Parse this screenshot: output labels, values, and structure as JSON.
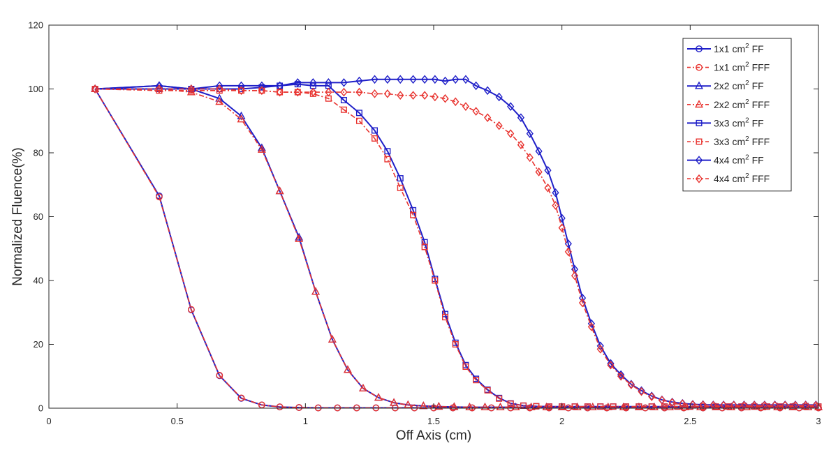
{
  "chart_data": {
    "type": "line",
    "title": "",
    "xlabel": "Off Axis (cm)",
    "ylabel": "Normalized Fluence(%)",
    "xlim": [
      0,
      3
    ],
    "ylim": [
      0,
      120
    ],
    "xticks": [
      0,
      0.5,
      1,
      1.5,
      2,
      2.5,
      3
    ],
    "xtick_labels": [
      "0",
      "0.5",
      "1",
      "1.5",
      "2",
      "2.5",
      "3"
    ],
    "yticks": [
      0,
      20,
      40,
      60,
      80,
      100,
      120
    ],
    "ytick_labels": [
      "0",
      "20",
      "40",
      "60",
      "80",
      "100",
      "120"
    ],
    "grid": false,
    "legend_position": "top-right",
    "colors": {
      "FF": "#1f1fc8",
      "FFF": "#e8332f",
      "axis": "#262626"
    },
    "series": [
      {
        "name": "1x1 cm² FF",
        "label_base": "1x1 cm",
        "label_tail": " FF",
        "color": "#1f1fc8",
        "dash": "solid",
        "marker": "circle",
        "x": [
          0.18,
          0.43,
          0.555,
          0.665,
          0.75,
          0.83,
          0.9,
          0.975,
          1.05,
          1.125,
          1.2,
          1.275,
          1.35,
          1.425,
          1.5,
          1.575,
          1.65,
          1.725,
          1.8,
          1.875,
          1.95,
          2.025,
          2.1,
          2.175,
          2.25,
          2.325,
          2.4,
          2.475,
          2.55,
          2.625,
          2.7,
          2.775,
          2.85,
          2.925,
          3.0
        ],
        "y": [
          100,
          66.5,
          30.8,
          10.2,
          3.1,
          1.0,
          0.4,
          0.2,
          0.1,
          0.1,
          0.1,
          0.1,
          0.1,
          0.1,
          0.1,
          0.1,
          0.1,
          0.1,
          0.1,
          0.1,
          0.1,
          0.1,
          0.1,
          0.1,
          0.1,
          0.1,
          0.1,
          0.1,
          0.1,
          0.1,
          0.1,
          0.1,
          0.1,
          0.1,
          0.1
        ]
      },
      {
        "name": "1x1 cm² FFF",
        "label_base": "1x1 cm",
        "label_tail": " FFF",
        "color": "#e8332f",
        "dash": "dashdot",
        "marker": "circle",
        "x": [
          0.18,
          0.43,
          0.555,
          0.665,
          0.75,
          0.83,
          0.9,
          0.975,
          1.05,
          1.125,
          1.2,
          1.275,
          1.35,
          1.425,
          1.5,
          1.575,
          1.65,
          1.725,
          1.8,
          1.875,
          1.95,
          2.025,
          2.1,
          2.175,
          2.25,
          2.325,
          2.4,
          2.475,
          2.55,
          2.625,
          2.7,
          2.775,
          2.85,
          2.925,
          3.0
        ],
        "y": [
          100,
          66.2,
          30.9,
          10.3,
          3.2,
          1.0,
          0.4,
          0.2,
          0.1,
          0.1,
          0.1,
          0.1,
          0.1,
          0.1,
          0.1,
          0.1,
          0.1,
          0.1,
          0.1,
          0.1,
          0.1,
          0.1,
          0.1,
          0.1,
          0.1,
          0.1,
          0.1,
          0.1,
          0.1,
          0.1,
          0.1,
          0.1,
          0.1,
          0.1,
          0.1
        ]
      },
      {
        "name": "2x2 cm² FF",
        "label_base": "2x2 cm",
        "label_tail": " FF",
        "color": "#1f1fc8",
        "dash": "solid",
        "marker": "triangle",
        "x": [
          0.18,
          0.43,
          0.555,
          0.665,
          0.75,
          0.83,
          0.9,
          0.975,
          1.04,
          1.105,
          1.165,
          1.225,
          1.285,
          1.345,
          1.4,
          1.46,
          1.52,
          1.58,
          1.64,
          1.7,
          1.76,
          1.82,
          1.88,
          1.94,
          2.0,
          2.06,
          2.12,
          2.18,
          2.24,
          2.3,
          2.36,
          2.42,
          2.48,
          2.54,
          2.6,
          2.66,
          2.72,
          2.78,
          2.84,
          2.9,
          2.96,
          3.0
        ],
        "y": [
          100,
          101,
          100,
          97,
          91.5,
          81.5,
          68,
          53.5,
          36.5,
          21.5,
          12,
          6.2,
          3.3,
          1.7,
          1.0,
          0.7,
          0.5,
          0.4,
          0.3,
          0.3,
          0.3,
          0.3,
          0.3,
          0.3,
          0.3,
          0.3,
          0.3,
          0.3,
          0.3,
          0.3,
          0.3,
          0.3,
          0.3,
          0.3,
          0.3,
          0.3,
          0.3,
          0.3,
          0.3,
          0.3,
          0.3,
          0.3
        ]
      },
      {
        "name": "2x2 cm² FFF",
        "label_base": "2x2 cm",
        "label_tail": " FFF",
        "color": "#e8332f",
        "dash": "dashdot",
        "marker": "triangle",
        "x": [
          0.18,
          0.43,
          0.555,
          0.665,
          0.75,
          0.83,
          0.9,
          0.975,
          1.04,
          1.105,
          1.165,
          1.225,
          1.285,
          1.345,
          1.4,
          1.46,
          1.52,
          1.58,
          1.64,
          1.7,
          1.76,
          1.82,
          1.88,
          1.94,
          2.0,
          2.06,
          2.12,
          2.18,
          2.24,
          2.3,
          2.36,
          2.42,
          2.48,
          2.54,
          2.6,
          2.66,
          2.72,
          2.78,
          2.84,
          2.9,
          2.96,
          3.0
        ],
        "y": [
          100,
          100,
          99,
          96,
          90.5,
          81,
          68,
          53,
          36.5,
          21.5,
          12,
          6.2,
          3.3,
          1.7,
          1.0,
          0.7,
          0.5,
          0.4,
          0.3,
          0.3,
          0.3,
          0.3,
          0.3,
          0.3,
          0.3,
          0.3,
          0.3,
          0.3,
          0.3,
          0.3,
          0.3,
          0.3,
          0.3,
          0.3,
          0.3,
          0.3,
          0.3,
          0.3,
          0.3,
          0.3,
          0.3,
          0.3
        ]
      },
      {
        "name": "3x3 cm² FF",
        "label_base": "3x3 cm",
        "label_tail": " FF",
        "color": "#1f1fc8",
        "dash": "solid",
        "marker": "square",
        "x": [
          0.18,
          0.43,
          0.555,
          0.665,
          0.75,
          0.83,
          0.9,
          0.97,
          1.03,
          1.09,
          1.15,
          1.21,
          1.27,
          1.32,
          1.37,
          1.42,
          1.465,
          1.505,
          1.545,
          1.585,
          1.625,
          1.665,
          1.71,
          1.755,
          1.8,
          1.85,
          1.9,
          1.95,
          2.0,
          2.05,
          2.1,
          2.15,
          2.2,
          2.25,
          2.3,
          2.35,
          2.4,
          2.45,
          2.5,
          2.55,
          2.6,
          2.65,
          2.7,
          2.75,
          2.8,
          2.85,
          2.9,
          2.95,
          3.0
        ],
        "y": [
          100,
          100,
          100,
          100,
          100,
          100.5,
          101,
          101.5,
          101,
          101,
          96.5,
          92.5,
          87,
          80.5,
          72,
          62,
          52,
          40.5,
          29.5,
          20.5,
          13.5,
          9.2,
          5.8,
          3.2,
          1.5,
          0.8,
          0.6,
          0.5,
          0.5,
          0.5,
          0.5,
          0.5,
          0.5,
          0.5,
          0.5,
          0.5,
          0.5,
          0.5,
          0.5,
          0.5,
          0.5,
          0.5,
          0.5,
          0.5,
          0.5,
          0.5,
          0.5,
          0.5,
          0.5
        ]
      },
      {
        "name": "3x3 cm² FFF",
        "label_base": "3x3 cm",
        "label_tail": " FFF",
        "color": "#e8332f",
        "dash": "dashdot",
        "marker": "square",
        "x": [
          0.18,
          0.43,
          0.555,
          0.665,
          0.75,
          0.83,
          0.9,
          0.97,
          1.03,
          1.09,
          1.15,
          1.21,
          1.27,
          1.32,
          1.37,
          1.42,
          1.465,
          1.505,
          1.545,
          1.585,
          1.625,
          1.665,
          1.71,
          1.755,
          1.8,
          1.85,
          1.9,
          1.95,
          2.0,
          2.05,
          2.1,
          2.15,
          2.2,
          2.25,
          2.3,
          2.35,
          2.4,
          2.45,
          2.5,
          2.55,
          2.6,
          2.65,
          2.7,
          2.75,
          2.8,
          2.85,
          2.9,
          2.95,
          3.0
        ],
        "y": [
          100,
          99.5,
          99.5,
          99.5,
          99.5,
          99.5,
          99,
          99,
          98.5,
          97,
          93.5,
          90,
          84.5,
          78,
          69,
          60.5,
          50.5,
          40,
          28.5,
          20,
          13,
          8.8,
          5.6,
          3.0,
          1.4,
          0.8,
          0.6,
          0.5,
          0.5,
          0.5,
          0.5,
          0.5,
          0.5,
          0.5,
          0.5,
          0.5,
          0.5,
          0.5,
          0.5,
          0.5,
          0.5,
          0.5,
          0.5,
          0.5,
          0.5,
          0.5,
          0.5,
          0.5,
          0.5
        ]
      },
      {
        "name": "4x4 cm² FF",
        "label_base": "4x4 cm",
        "label_tail": " FF",
        "color": "#1f1fc8",
        "dash": "solid",
        "marker": "diamond",
        "x": [
          0.18,
          0.43,
          0.555,
          0.665,
          0.75,
          0.83,
          0.9,
          0.97,
          1.03,
          1.09,
          1.15,
          1.21,
          1.27,
          1.32,
          1.37,
          1.42,
          1.465,
          1.505,
          1.545,
          1.585,
          1.625,
          1.665,
          1.71,
          1.755,
          1.8,
          1.84,
          1.875,
          1.91,
          1.945,
          1.975,
          2.0,
          2.025,
          2.05,
          2.08,
          2.115,
          2.15,
          2.19,
          2.23,
          2.27,
          2.31,
          2.35,
          2.39,
          2.43,
          2.47,
          2.51,
          2.55,
          2.59,
          2.63,
          2.67,
          2.71,
          2.75,
          2.79,
          2.83,
          2.87,
          2.91,
          2.95,
          2.99
        ],
        "y": [
          100,
          101,
          100,
          101,
          101,
          101,
          101,
          102,
          102,
          102,
          102,
          102.5,
          103,
          103,
          103,
          103,
          103,
          103,
          102.5,
          103,
          103,
          101,
          99.5,
          97.5,
          94.5,
          91,
          86,
          80.5,
          74.5,
          67.5,
          59.5,
          51.5,
          43.5,
          34.5,
          26.5,
          19.5,
          14,
          10.5,
          7.5,
          5.5,
          3.8,
          2.6,
          1.9,
          1.5,
          1.2,
          1.1,
          1.0,
          1.0,
          1.0,
          1.0,
          1.0,
          1.0,
          1.0,
          1.0,
          1.0,
          1.0,
          1.0
        ]
      },
      {
        "name": "4x4 cm² FFF",
        "label_base": "4x4 cm",
        "label_tail": " FFF",
        "color": "#e8332f",
        "dash": "dashdot",
        "marker": "diamond",
        "x": [
          0.18,
          0.43,
          0.555,
          0.665,
          0.75,
          0.83,
          0.9,
          0.97,
          1.03,
          1.09,
          1.15,
          1.21,
          1.27,
          1.32,
          1.37,
          1.42,
          1.465,
          1.505,
          1.545,
          1.585,
          1.625,
          1.665,
          1.71,
          1.755,
          1.8,
          1.84,
          1.875,
          1.91,
          1.945,
          1.975,
          2.0,
          2.025,
          2.05,
          2.08,
          2.115,
          2.15,
          2.19,
          2.23,
          2.27,
          2.31,
          2.35,
          2.39,
          2.43,
          2.47,
          2.51,
          2.55,
          2.59,
          2.63,
          2.67,
          2.71,
          2.75,
          2.79,
          2.83,
          2.87,
          2.91,
          2.95,
          2.99
        ],
        "y": [
          100,
          100,
          100,
          100,
          99.5,
          99.5,
          99,
          99,
          99,
          99,
          99,
          99,
          98.5,
          98.5,
          98,
          98,
          98,
          97.5,
          97,
          96,
          94.5,
          93,
          91,
          88.5,
          86,
          82.5,
          78.5,
          74,
          69,
          63.5,
          56.5,
          49,
          41.5,
          33,
          25.5,
          18.5,
          13.5,
          10,
          7.3,
          5.2,
          3.6,
          2.5,
          1.8,
          1.4,
          1.1,
          1.0,
          0.9,
          0.9,
          0.9,
          0.9,
          0.9,
          0.9,
          0.9,
          0.9,
          0.9,
          0.9,
          0.9
        ]
      }
    ]
  }
}
